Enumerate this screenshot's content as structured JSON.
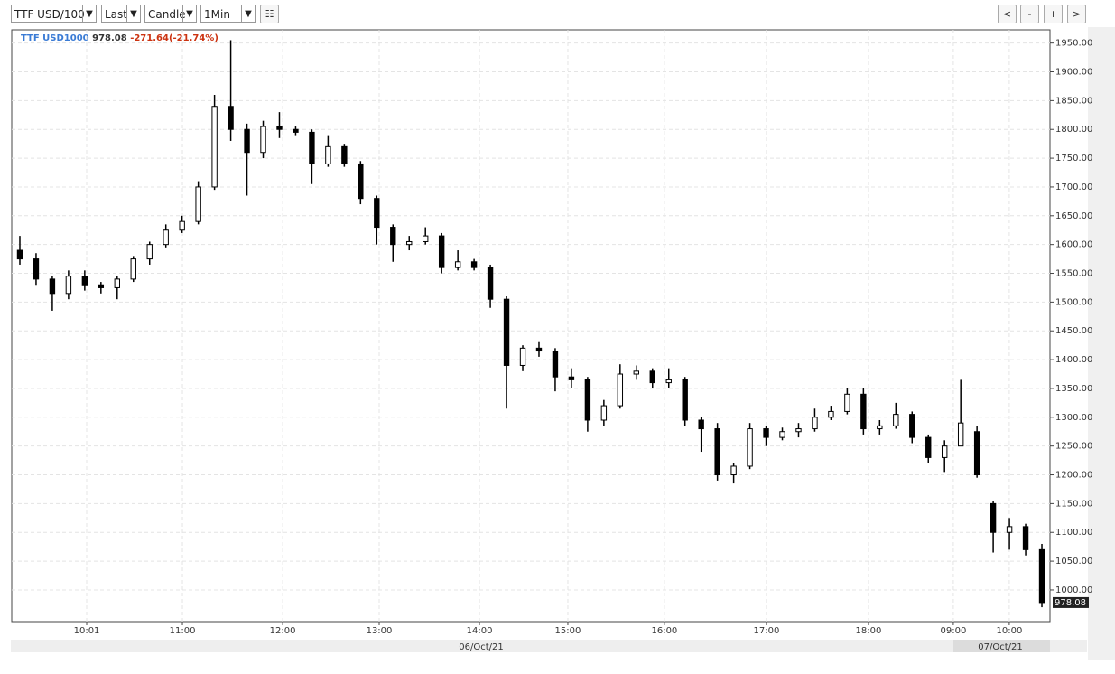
{
  "toolbar": {
    "symbol": "TTF USD/100",
    "field": "Last",
    "style": "Candle",
    "interval": "1Min",
    "buttons": [
      "<",
      "-",
      "+",
      ">"
    ]
  },
  "chart_data": {
    "type": "candlestick",
    "instrument": "TTF USD1000",
    "last": 978.08,
    "change": "-271.64(-21.74%)",
    "color": "#000000",
    "open": [
      1590,
      1575,
      1540,
      1515,
      1545,
      1530,
      1525,
      1540,
      1575,
      1600,
      1625,
      1640,
      1700,
      1840,
      1800,
      1760,
      1805,
      1800,
      1795,
      1740,
      1770,
      1740,
      1680,
      1630,
      1600,
      1605,
      1615,
      1560,
      1570,
      1560,
      1505,
      1390,
      1420,
      1415,
      1370,
      1365,
      1295,
      1320,
      1375,
      1380,
      1360,
      1365,
      1295,
      1280,
      1200,
      1215,
      1280,
      1265,
      1275,
      1280,
      1300,
      1310,
      1340,
      1280,
      1285,
      1305,
      1265,
      1230,
      1250,
      1275,
      1150,
      1100,
      1110,
      1070
    ],
    "high": [
      1615,
      1585,
      1545,
      1555,
      1555,
      1535,
      1545,
      1580,
      1605,
      1635,
      1650,
      1710,
      1860,
      1955,
      1810,
      1815,
      1830,
      1805,
      1800,
      1790,
      1775,
      1745,
      1685,
      1635,
      1615,
      1630,
      1620,
      1590,
      1575,
      1565,
      1510,
      1425,
      1432,
      1420,
      1385,
      1370,
      1330,
      1392,
      1390,
      1385,
      1385,
      1370,
      1300,
      1290,
      1220,
      1290,
      1285,
      1282,
      1290,
      1315,
      1320,
      1350,
      1350,
      1295,
      1325,
      1310,
      1270,
      1260,
      1365,
      1285,
      1155,
      1125,
      1115,
      1080
    ],
    "low": [
      1565,
      1530,
      1485,
      1505,
      1520,
      1515,
      1505,
      1535,
      1565,
      1595,
      1620,
      1635,
      1695,
      1780,
      1685,
      1750,
      1785,
      1790,
      1705,
      1735,
      1735,
      1670,
      1600,
      1570,
      1590,
      1600,
      1550,
      1555,
      1555,
      1490,
      1315,
      1380,
      1405,
      1345,
      1350,
      1275,
      1285,
      1315,
      1365,
      1350,
      1350,
      1285,
      1240,
      1190,
      1185,
      1210,
      1250,
      1260,
      1265,
      1275,
      1295,
      1305,
      1270,
      1270,
      1280,
      1255,
      1220,
      1205,
      1250,
      1195,
      1065,
      1070,
      1060,
      970
    ],
    "close": [
      1575,
      1540,
      1515,
      1545,
      1530,
      1525,
      1540,
      1575,
      1600,
      1625,
      1640,
      1700,
      1840,
      1800,
      1760,
      1805,
      1800,
      1795,
      1740,
      1770,
      1740,
      1680,
      1630,
      1600,
      1605,
      1615,
      1560,
      1570,
      1560,
      1505,
      1390,
      1420,
      1415,
      1370,
      1365,
      1295,
      1320,
      1375,
      1380,
      1360,
      1365,
      1295,
      1280,
      1200,
      1215,
      1280,
      1265,
      1275,
      1280,
      1300,
      1310,
      1340,
      1280,
      1285,
      1305,
      1265,
      1230,
      1250,
      1290,
      1200,
      1100,
      1110,
      1070,
      978.08
    ],
    "xlim": [
      0,
      64
    ],
    "xticks": [
      {
        "value": 4.62,
        "label": "10:01"
      },
      {
        "value": 10.52,
        "label": "11:00"
      },
      {
        "value": 16.7,
        "label": "12:00"
      },
      {
        "value": 22.65,
        "label": "13:00"
      },
      {
        "value": 28.83,
        "label": "14:00"
      },
      {
        "value": 34.28,
        "label": "15:00"
      },
      {
        "value": 40.23,
        "label": "16:00"
      },
      {
        "value": 46.52,
        "label": "17:00"
      },
      {
        "value": 52.81,
        "label": "18:00"
      },
      {
        "value": 58.04,
        "label": "09:00"
      },
      {
        "value": 61.49,
        "label": "10:00"
      }
    ],
    "date_labels": [
      {
        "value": 28.94,
        "label": "06/Oct/21"
      },
      {
        "value": 60.94,
        "label": "07/Oct/21"
      }
    ],
    "ylim": [
      945,
      1973
    ],
    "yticks": [
      {
        "value": 1000,
        "label": "1000.00"
      },
      {
        "value": 1050,
        "label": "1050.00"
      },
      {
        "value": 1100,
        "label": "1100.00"
      },
      {
        "value": 1150,
        "label": "1150.00"
      },
      {
        "value": 1200,
        "label": "1200.00"
      },
      {
        "value": 1250,
        "label": "1250.00"
      },
      {
        "value": 1300,
        "label": "1300.00"
      },
      {
        "value": 1350,
        "label": "1350.00"
      },
      {
        "value": 1400,
        "label": "1400.00"
      },
      {
        "value": 1450,
        "label": "1450.00"
      },
      {
        "value": 1500,
        "label": "1500.00"
      },
      {
        "value": 1550,
        "label": "1550.00"
      },
      {
        "value": 1600,
        "label": "1600.00"
      },
      {
        "value": 1650,
        "label": "1650.00"
      },
      {
        "value": 1700,
        "label": "1700.00"
      },
      {
        "value": 1750,
        "label": "1750.00"
      },
      {
        "value": 1800,
        "label": "1800.00"
      },
      {
        "value": 1850,
        "label": "1850.00"
      },
      {
        "value": 1900,
        "label": "1900.00"
      },
      {
        "value": 1950,
        "label": "1950.00"
      }
    ],
    "grid": true
  }
}
